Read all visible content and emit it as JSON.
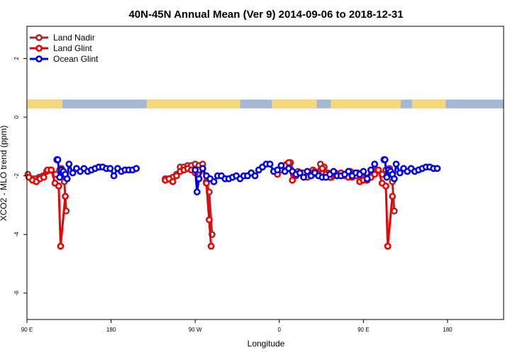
{
  "chart_data": {
    "type": "line",
    "title": "40N-45N Annual Mean (Ver 9)   2014-09-06 to 2018-12-31",
    "xlabel": "Longitude",
    "ylabel": "XCO2 - MLO trend (ppm)",
    "xlim": [
      90,
      600
    ],
    "ylim": [
      -6.9,
      3.1
    ],
    "x_ticks": [
      {
        "value": 90,
        "label": "90 E"
      },
      {
        "value": 180,
        "label": "180"
      },
      {
        "value": 270,
        "label": "90 W"
      },
      {
        "value": 360,
        "label": "0"
      },
      {
        "value": 450,
        "label": "90 E"
      },
      {
        "value": 540,
        "label": "180"
      }
    ],
    "y_ticks": [
      {
        "value": -6,
        "label": "-6"
      },
      {
        "value": -4,
        "label": "-4"
      },
      {
        "value": -2,
        "label": "-2"
      },
      {
        "value": 0,
        "label": "0"
      },
      {
        "value": 2,
        "label": "2"
      }
    ],
    "grid": false,
    "legend_position": "top-left",
    "land_strip": {
      "y_range": [
        0.3,
        0.6
      ],
      "land_color": "#f7d77e",
      "ocean_color": "#a4b8d6",
      "land_segments": [
        [
          90,
          128
        ],
        [
          218,
          318
        ],
        [
          352,
          400
        ],
        [
          415,
          490
        ],
        [
          502,
          538
        ]
      ]
    },
    "series": [
      {
        "name": "Land Nadir",
        "color": "#a52a2a",
        "points": [
          [
            91,
            -1.95
          ],
          [
            95,
            -2.1
          ],
          [
            99,
            -2.1
          ],
          [
            103,
            -2.05
          ],
          [
            107,
            -2.0
          ],
          [
            111,
            -1.85
          ],
          [
            115,
            -1.8
          ],
          [
            121,
            -1.95
          ],
          [
            125,
            -1.8
          ],
          [
            127,
            -1.75
          ],
          [
            130,
            -2.2
          ],
          [
            132,
            -3.2
          ],
          null,
          [
            238,
            -2.1
          ],
          [
            242,
            -2.1
          ],
          [
            246,
            -2.05
          ],
          [
            250,
            -1.95
          ],
          [
            254,
            -1.7
          ],
          [
            258,
            -1.7
          ],
          [
            262,
            -1.65
          ],
          [
            266,
            -1.65
          ],
          [
            270,
            -1.6
          ],
          [
            274,
            -1.65
          ],
          [
            278,
            -1.6
          ],
          [
            282,
            -2.2
          ],
          [
            285,
            -2.55
          ],
          [
            288,
            -4.0
          ],
          null,
          [
            360,
            -1.8
          ],
          [
            364,
            -1.7
          ],
          [
            368,
            -1.6
          ],
          [
            372,
            -1.55
          ],
          [
            376,
            -1.9
          ],
          [
            380,
            -1.85
          ],
          [
            384,
            -1.9
          ],
          [
            388,
            -2.0
          ],
          [
            392,
            -1.9
          ],
          [
            396,
            -1.8
          ],
          [
            400,
            -1.95
          ],
          [
            404,
            -1.6
          ],
          [
            408,
            -1.7
          ],
          [
            412,
            -1.9
          ],
          [
            416,
            -2.05
          ],
          [
            420,
            -1.9
          ],
          [
            424,
            -1.95
          ],
          [
            428,
            -1.95
          ],
          [
            432,
            -2.0
          ],
          [
            436,
            -1.85
          ],
          [
            440,
            -1.9
          ],
          [
            444,
            -1.9
          ],
          [
            448,
            -2.0
          ],
          [
            452,
            -2.1
          ],
          [
            456,
            -2.05
          ],
          [
            460,
            -1.85
          ],
          [
            464,
            -1.8
          ],
          [
            470,
            -1.95
          ],
          [
            474,
            -1.8
          ],
          [
            478,
            -1.75
          ],
          [
            481,
            -2.2
          ],
          [
            483,
            -3.2
          ]
        ]
      },
      {
        "name": "Land Glint",
        "color": "#ee0000",
        "points": [
          [
            92,
            -2.05
          ],
          [
            96,
            -2.15
          ],
          [
            100,
            -2.2
          ],
          [
            104,
            -2.1
          ],
          [
            108,
            -2.05
          ],
          [
            112,
            -1.8
          ],
          [
            116,
            -1.8
          ],
          [
            120,
            -2.25
          ],
          [
            124,
            -2.35
          ],
          [
            126,
            -4.4
          ],
          [
            131,
            -2.7
          ],
          null,
          [
            238,
            -2.15
          ],
          [
            242,
            -2.1
          ],
          [
            246,
            -2.2
          ],
          [
            250,
            -2.0
          ],
          [
            254,
            -1.85
          ],
          [
            258,
            -1.8
          ],
          [
            262,
            -1.75
          ],
          [
            266,
            -1.8
          ],
          [
            270,
            -1.9
          ],
          [
            274,
            -1.8
          ],
          [
            278,
            -1.75
          ],
          [
            282,
            -2.25
          ],
          [
            285,
            -3.5
          ],
          [
            287,
            -4.4
          ],
          null,
          [
            358,
            -1.95
          ],
          [
            362,
            -1.8
          ],
          [
            366,
            -1.65
          ],
          [
            370,
            -1.55
          ],
          [
            374,
            -2.15
          ],
          [
            378,
            -2.0
          ],
          [
            382,
            -1.9
          ],
          [
            386,
            -1.9
          ],
          [
            390,
            -2.05
          ],
          [
            394,
            -1.95
          ],
          [
            398,
            -1.85
          ],
          [
            402,
            -1.95
          ],
          [
            406,
            -1.75
          ],
          [
            410,
            -1.95
          ],
          [
            414,
            -2.05
          ],
          [
            418,
            -1.9
          ],
          [
            422,
            -2.0
          ],
          [
            426,
            -1.9
          ],
          [
            430,
            -2.0
          ],
          [
            434,
            -2.05
          ],
          [
            438,
            -2.05
          ],
          [
            442,
            -2.0
          ],
          [
            446,
            -2.2
          ],
          [
            450,
            -2.15
          ],
          [
            454,
            -2.15
          ],
          [
            458,
            -2.05
          ],
          [
            462,
            -1.95
          ],
          [
            466,
            -1.8
          ],
          [
            470,
            -2.25
          ],
          [
            474,
            -2.35
          ],
          [
            476,
            -4.4
          ],
          [
            481,
            -2.7
          ]
        ]
      },
      {
        "name": "Ocean Glint",
        "color": "#0000ee",
        "points": [
          [
            122,
            -1.45
          ],
          [
            123,
            -1.45
          ],
          [
            125,
            -2.05
          ],
          [
            127,
            -1.8
          ],
          [
            129,
            -1.85
          ],
          [
            131,
            -1.95
          ],
          [
            133,
            -2.1
          ],
          [
            135,
            -1.6
          ],
          [
            139,
            -1.9
          ],
          [
            143,
            -1.75
          ],
          [
            147,
            -1.85
          ],
          [
            151,
            -1.75
          ],
          [
            155,
            -1.85
          ],
          [
            159,
            -1.8
          ],
          [
            163,
            -1.75
          ],
          [
            167,
            -1.7
          ],
          [
            171,
            -1.7
          ],
          [
            175,
            -1.75
          ],
          [
            179,
            -1.75
          ],
          [
            183,
            -2.0
          ],
          [
            187,
            -1.75
          ],
          [
            191,
            -1.85
          ],
          [
            195,
            -1.8
          ],
          [
            199,
            -1.8
          ],
          [
            203,
            -1.8
          ],
          [
            207,
            -1.75
          ],
          null,
          [
            270,
            -1.8
          ],
          [
            272,
            -2.55
          ],
          [
            274,
            -2.1
          ],
          [
            278,
            -1.75
          ],
          [
            282,
            -2.0
          ],
          [
            286,
            -2.1
          ],
          [
            290,
            -2.2
          ],
          [
            294,
            -2.0
          ],
          [
            298,
            -2.0
          ],
          [
            302,
            -2.1
          ],
          [
            306,
            -2.1
          ],
          [
            310,
            -2.05
          ],
          [
            314,
            -2.0
          ],
          [
            318,
            -2.1
          ],
          [
            322,
            -2.0
          ],
          [
            326,
            -2.0
          ],
          [
            330,
            -1.9
          ],
          [
            334,
            -2.0
          ],
          [
            338,
            -1.8
          ],
          [
            342,
            -1.7
          ],
          [
            346,
            -1.6
          ],
          [
            350,
            -1.6
          ],
          [
            354,
            -1.85
          ],
          [
            358,
            -1.8
          ],
          [
            362,
            -1.65
          ],
          [
            366,
            -1.85
          ],
          [
            370,
            -1.75
          ],
          [
            374,
            -1.85
          ],
          [
            378,
            -1.95
          ],
          [
            382,
            -1.9
          ],
          [
            386,
            -2.05
          ],
          [
            390,
            -1.85
          ],
          [
            394,
            -2.0
          ],
          [
            398,
            -1.9
          ],
          [
            402,
            -2.0
          ],
          [
            406,
            -2.05
          ],
          [
            410,
            -2.05
          ],
          [
            414,
            -1.95
          ],
          [
            418,
            -1.85
          ],
          [
            422,
            -2.0
          ],
          [
            426,
            -2.0
          ],
          [
            430,
            -1.95
          ],
          [
            434,
            -1.85
          ],
          [
            438,
            -2.0
          ],
          [
            442,
            -1.9
          ],
          [
            446,
            -1.95
          ],
          [
            450,
            -1.85
          ],
          [
            454,
            -2.1
          ],
          [
            458,
            -1.8
          ],
          [
            462,
            -1.6
          ],
          null,
          [
            472,
            -1.45
          ],
          [
            473,
            -1.45
          ],
          [
            475,
            -2.05
          ],
          [
            477,
            -1.8
          ],
          [
            479,
            -1.85
          ],
          [
            481,
            -1.95
          ],
          [
            483,
            -2.1
          ],
          [
            485,
            -1.6
          ],
          [
            489,
            -1.9
          ],
          [
            493,
            -1.75
          ],
          [
            497,
            -1.85
          ],
          [
            501,
            -1.75
          ],
          [
            505,
            -1.85
          ],
          [
            509,
            -1.8
          ],
          [
            513,
            -1.75
          ],
          [
            517,
            -1.7
          ],
          [
            521,
            -1.7
          ],
          [
            525,
            -1.75
          ],
          [
            529,
            -1.75
          ]
        ]
      }
    ]
  }
}
